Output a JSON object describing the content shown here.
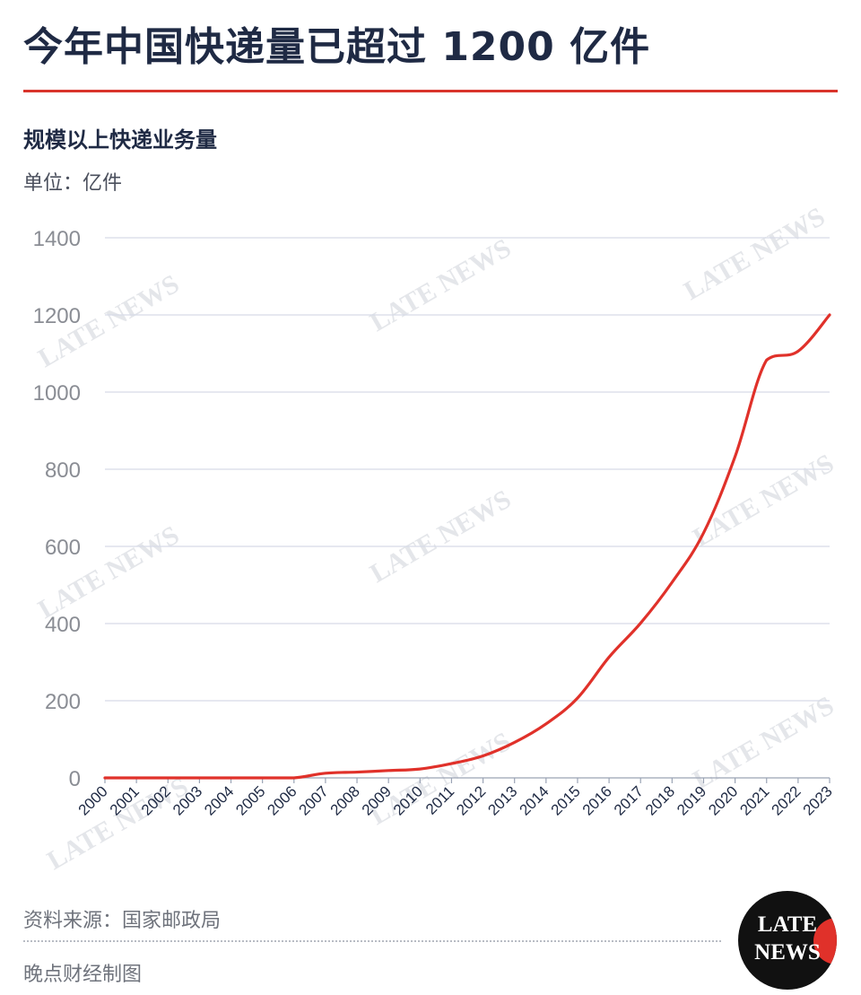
{
  "header": {
    "title": "今年中国快递量已超过 1200 亿件",
    "subtitle": "规模以上快递业务量",
    "unit": "单位：亿件"
  },
  "footer": {
    "source": "资料来源：国家邮政局",
    "credit": "晚点财经制图"
  },
  "logo": {
    "line1": "LATE",
    "line2": "NEWS"
  },
  "watermark_text": "LATE NEWS",
  "colors": {
    "line": "#e0312a",
    "title": "#1f2a44",
    "accent_rule": "#d9342b",
    "grid": "#d6dbe8"
  },
  "chart_data": {
    "type": "line",
    "x": [
      "2000",
      "2001",
      "2002",
      "2003",
      "2004",
      "2005",
      "2006",
      "2007",
      "2008",
      "2009",
      "2010",
      "2011",
      "2012",
      "2013",
      "2014",
      "2015",
      "2016",
      "2017",
      "2018",
      "2019",
      "2020",
      "2021",
      "2022",
      "2023"
    ],
    "series": [
      {
        "values": [
          0,
          0,
          0,
          0,
          0,
          0,
          0,
          12,
          15,
          19,
          23,
          37,
          57,
          92,
          140,
          207,
          313,
          401,
          507,
          635,
          833,
          1083,
          1106,
          1200
        ]
      }
    ],
    "yticks": [
      0,
      200,
      400,
      600,
      800,
      1000,
      1200,
      1400
    ],
    "ylim": [
      0,
      1400
    ],
    "grid": true,
    "legend": "none"
  }
}
